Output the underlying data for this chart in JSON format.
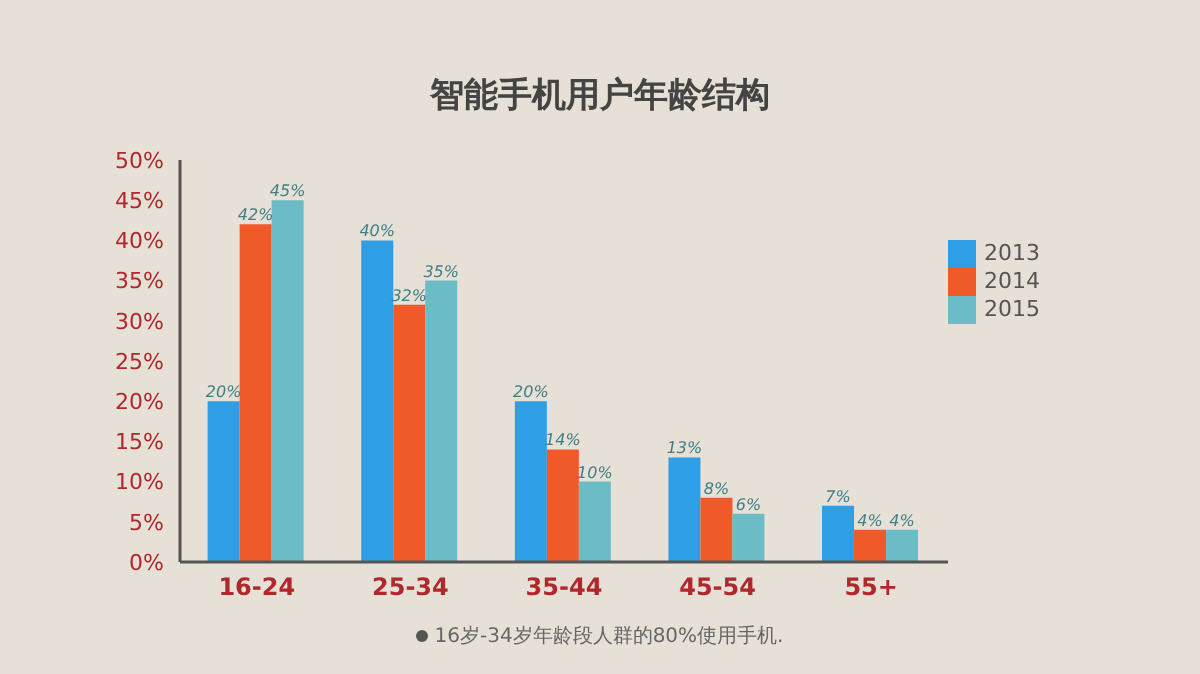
{
  "chart_data": {
    "type": "bar",
    "title": "智能手机用户年龄结构",
    "categories": [
      "16-24",
      "25-34",
      "35-44",
      "45-54",
      "55+"
    ],
    "series": [
      {
        "name": "2013",
        "color": "#2e9fe6",
        "values": [
          20,
          40,
          20,
          13,
          7
        ],
        "value_labels": [
          "20%",
          "40%",
          "20%",
          "13%",
          "7%"
        ]
      },
      {
        "name": "2014",
        "color": "#f05a28",
        "values": [
          42,
          32,
          14,
          8,
          4
        ],
        "value_labels": [
          "42%",
          "32%",
          "14%",
          "8%",
          "4%"
        ]
      },
      {
        "name": "2015",
        "color": "#6bbcc6",
        "values": [
          45,
          35,
          10,
          6,
          4
        ],
        "value_labels": [
          "45%",
          "35%",
          "10%",
          "6%",
          "4%"
        ]
      }
    ],
    "ylim": [
      0,
      50
    ],
    "yticks": [
      {
        "value": 0,
        "label": "0%"
      },
      {
        "value": 5,
        "label": "5%"
      },
      {
        "value": 10,
        "label": "10%"
      },
      {
        "value": 15,
        "label": "15%"
      },
      {
        "value": 20,
        "label": "20%"
      },
      {
        "value": 25,
        "label": "25%"
      },
      {
        "value": 30,
        "label": "30%"
      },
      {
        "value": 35,
        "label": "35%"
      },
      {
        "value": 40,
        "label": "40%"
      },
      {
        "value": 45,
        "label": "45%"
      },
      {
        "value": 50,
        "label": "50%"
      }
    ],
    "grid": false,
    "legend": "top right",
    "annotations": [
      "16岁-34岁年龄段人群的80%使用手机."
    ]
  }
}
